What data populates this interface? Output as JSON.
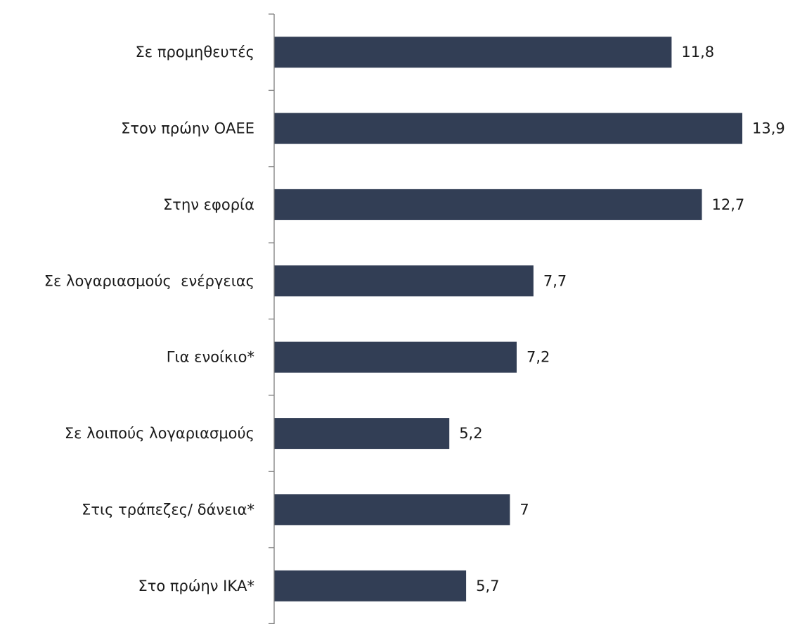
{
  "chart_data": {
    "type": "bar",
    "orientation": "horizontal",
    "categories": [
      "Σε προμηθευτές",
      "Στον πρώην ΟΑΕΕ",
      "Στην εφορία",
      "Σε λογαριασμούς  ενέργειας",
      "Για ενοίκιο*",
      "Σε λοιπούς λογαριασμούς",
      "Στις τράπεζες/ δάνεια*",
      "Στο πρώην ΙΚΑ*"
    ],
    "values": [
      11.8,
      13.9,
      12.7,
      7.7,
      7.2,
      5.2,
      7,
      5.7
    ],
    "data_labels": [
      "11,8",
      "13,9",
      "12,7",
      "7,7",
      "7,2",
      "5,2",
      "7",
      "5,7"
    ],
    "title": "",
    "xlabel": "",
    "ylabel": "",
    "xlim": [
      0,
      13.9
    ],
    "grid": false,
    "legend": "none",
    "bar_color": "#323e55"
  }
}
